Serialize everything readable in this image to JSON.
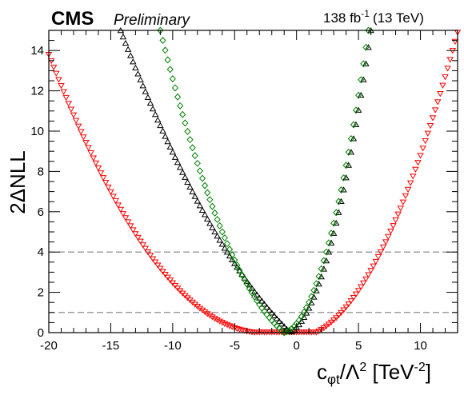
{
  "chart_data": {
    "type": "scatter",
    "header": {
      "experiment": "CMS",
      "status": "Preliminary",
      "lumi_value": "138 fb",
      "lumi_exp": "-1",
      "energy": "(13 TeV)"
    },
    "xlabel": {
      "base": "c",
      "sub": "φt",
      "mid": "/Λ",
      "sup": "2",
      "bracket": " [TeV",
      "bracket_sup": "-2",
      "close": "]"
    },
    "ylabel": "2ΔNLL",
    "xlim": [
      -20,
      13
    ],
    "ylim": [
      0,
      15
    ],
    "x_ticks": [
      -20,
      -15,
      -10,
      -5,
      0,
      5,
      10
    ],
    "y_ticks": [
      0,
      2,
      4,
      6,
      8,
      10,
      12,
      14
    ],
    "reference_lines": [
      1,
      4
    ],
    "series": [
      {
        "marker": "triangle-down",
        "color": "#ff0000",
        "min_x": -2.0,
        "x_range": [
          -20,
          13
        ],
        "left_points": [
          [
            -20,
            13.8
          ],
          [
            -12,
            4.0
          ],
          [
            -6.0,
            1.0
          ]
        ],
        "right_points": [
          [
            2.0,
            1.0
          ],
          [
            6.8,
            4.0
          ],
          [
            13,
            14.9
          ]
        ]
      },
      {
        "marker": "triangle-up",
        "color": "#000000",
        "min_x": -0.5,
        "x_range": [
          -14.2,
          6.0
        ],
        "left_points": [
          [
            -14.2,
            15.0
          ],
          [
            -5.6,
            4.0
          ],
          [
            -2.8,
            1.0
          ]
        ],
        "right_points": [
          [
            0.8,
            1.0
          ],
          [
            2.6,
            4.0
          ],
          [
            6.0,
            15.0
          ]
        ]
      },
      {
        "marker": "diamond",
        "color": "#008000",
        "min_x": -1.0,
        "x_range": [
          -11.0,
          5.8
        ],
        "left_points": [
          [
            -11.0,
            15.0
          ],
          [
            -5.3,
            4.0
          ],
          [
            -3.0,
            1.0
          ]
        ],
        "right_points": [
          [
            0.6,
            1.0
          ],
          [
            2.4,
            4.0
          ],
          [
            5.8,
            15.0
          ]
        ]
      }
    ]
  }
}
